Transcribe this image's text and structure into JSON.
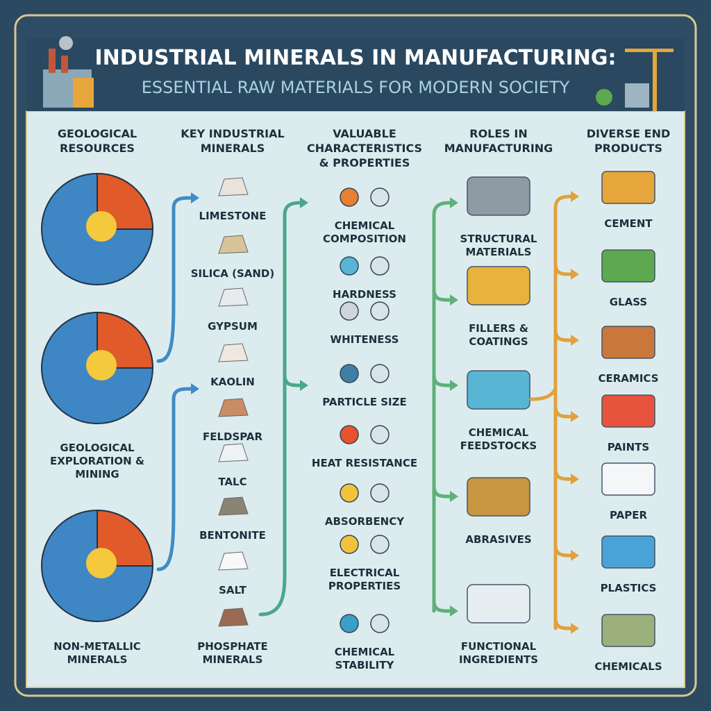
{
  "header": {
    "title": "INDUSTRIAL MINERALS IN MANUFACTURING:",
    "subtitle": "ESSENTIAL RAW MATERIALS FOR MODERN SOCIETY"
  },
  "columns": [
    {
      "heading": "GEOLOGICAL RESOURCES",
      "items": [
        "GEOLOGICAL EXPLORATION & MINING",
        "NON-METALLIC MINERALS"
      ]
    },
    {
      "heading": "KEY INDUSTRIAL MINERALS",
      "items": [
        "LIMESTONE",
        "SILICA (SAND)",
        "GYPSUM",
        "KAOLIN",
        "FELDSPAR",
        "TALC",
        "BENTONITE",
        "SALT",
        "PHOSPHATE MINERALS"
      ]
    },
    {
      "heading": "VALUABLE CHARACTERISTICS & PROPERTIES",
      "items": [
        "CHEMICAL COMPOSITION",
        "HARDNESS",
        "WHITENESS",
        "PARTICLE SIZE",
        "HEAT RESISTANCE",
        "ABSORBENCY",
        "ELECTRICAL PROPERTIES",
        "CHEMICAL STABILITY"
      ]
    },
    {
      "heading": "ROLES IN MANUFACTURING",
      "items": [
        "STRUCTURAL MATERIALS",
        "FILLERS & COATINGS",
        "CHEMICAL FEEDSTOCKS",
        "ABRASIVES",
        "FUNCTIONAL INGREDIENTS"
      ]
    },
    {
      "heading": "DIVERSE END PRODUCTS",
      "items": [
        "CEMENT",
        "GLASS",
        "CERAMICS",
        "PAINTS",
        "PAPER",
        "PLASTICS",
        "CHEMICALS"
      ]
    }
  ]
}
